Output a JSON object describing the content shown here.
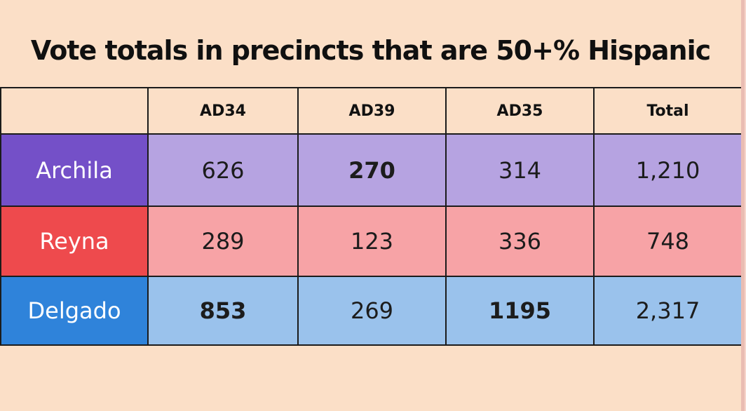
{
  "title": "Vote totals in precincts that are 50+% Hispanic",
  "colors": {
    "background": "#fbdfc7",
    "table_border": "#1b1b1b",
    "header_bg": "#fbdfc7",
    "label_text": "#ffffff",
    "value_text": "#1c1c1c",
    "right_edge_strip": "#eabdb3",
    "archila_label_bg": "#7450c8",
    "archila_cell_bg": "#b6a3e1",
    "reyna_label_bg": "#ee4a4d",
    "reyna_cell_bg": "#f7a3a6",
    "delgado_label_bg": "#2f83da",
    "delgado_cell_bg": "#9ac2ec"
  },
  "table": {
    "headers": [
      "",
      "AD34",
      "AD39",
      "AD35",
      "Total"
    ],
    "rows": [
      {
        "label": "Archila",
        "values": [
          "626",
          "270",
          "314",
          "1,210"
        ],
        "bold": [
          false,
          true,
          false,
          false
        ]
      },
      {
        "label": "Reyna",
        "values": [
          "289",
          "123",
          "336",
          "748"
        ],
        "bold": [
          false,
          false,
          false,
          false
        ]
      },
      {
        "label": "Delgado",
        "values": [
          "853",
          "269",
          "1195",
          "2,317"
        ],
        "bold": [
          true,
          false,
          true,
          false
        ]
      }
    ]
  },
  "chart_data": {
    "type": "table",
    "title": "Vote totals in precincts that are 50+% Hispanic",
    "columns": [
      "AD34",
      "AD39",
      "AD35",
      "Total"
    ],
    "rows": [
      {
        "name": "Archila",
        "values": [
          626,
          270,
          314,
          1210
        ]
      },
      {
        "name": "Reyna",
        "values": [
          289,
          123,
          336,
          748
        ]
      },
      {
        "name": "Delgado",
        "values": [
          853,
          269,
          1195,
          2317
        ]
      }
    ],
    "emphasized_cells": [
      [
        "Archila",
        "AD39"
      ],
      [
        "Delgado",
        "AD34"
      ],
      [
        "Delgado",
        "AD35"
      ]
    ]
  }
}
